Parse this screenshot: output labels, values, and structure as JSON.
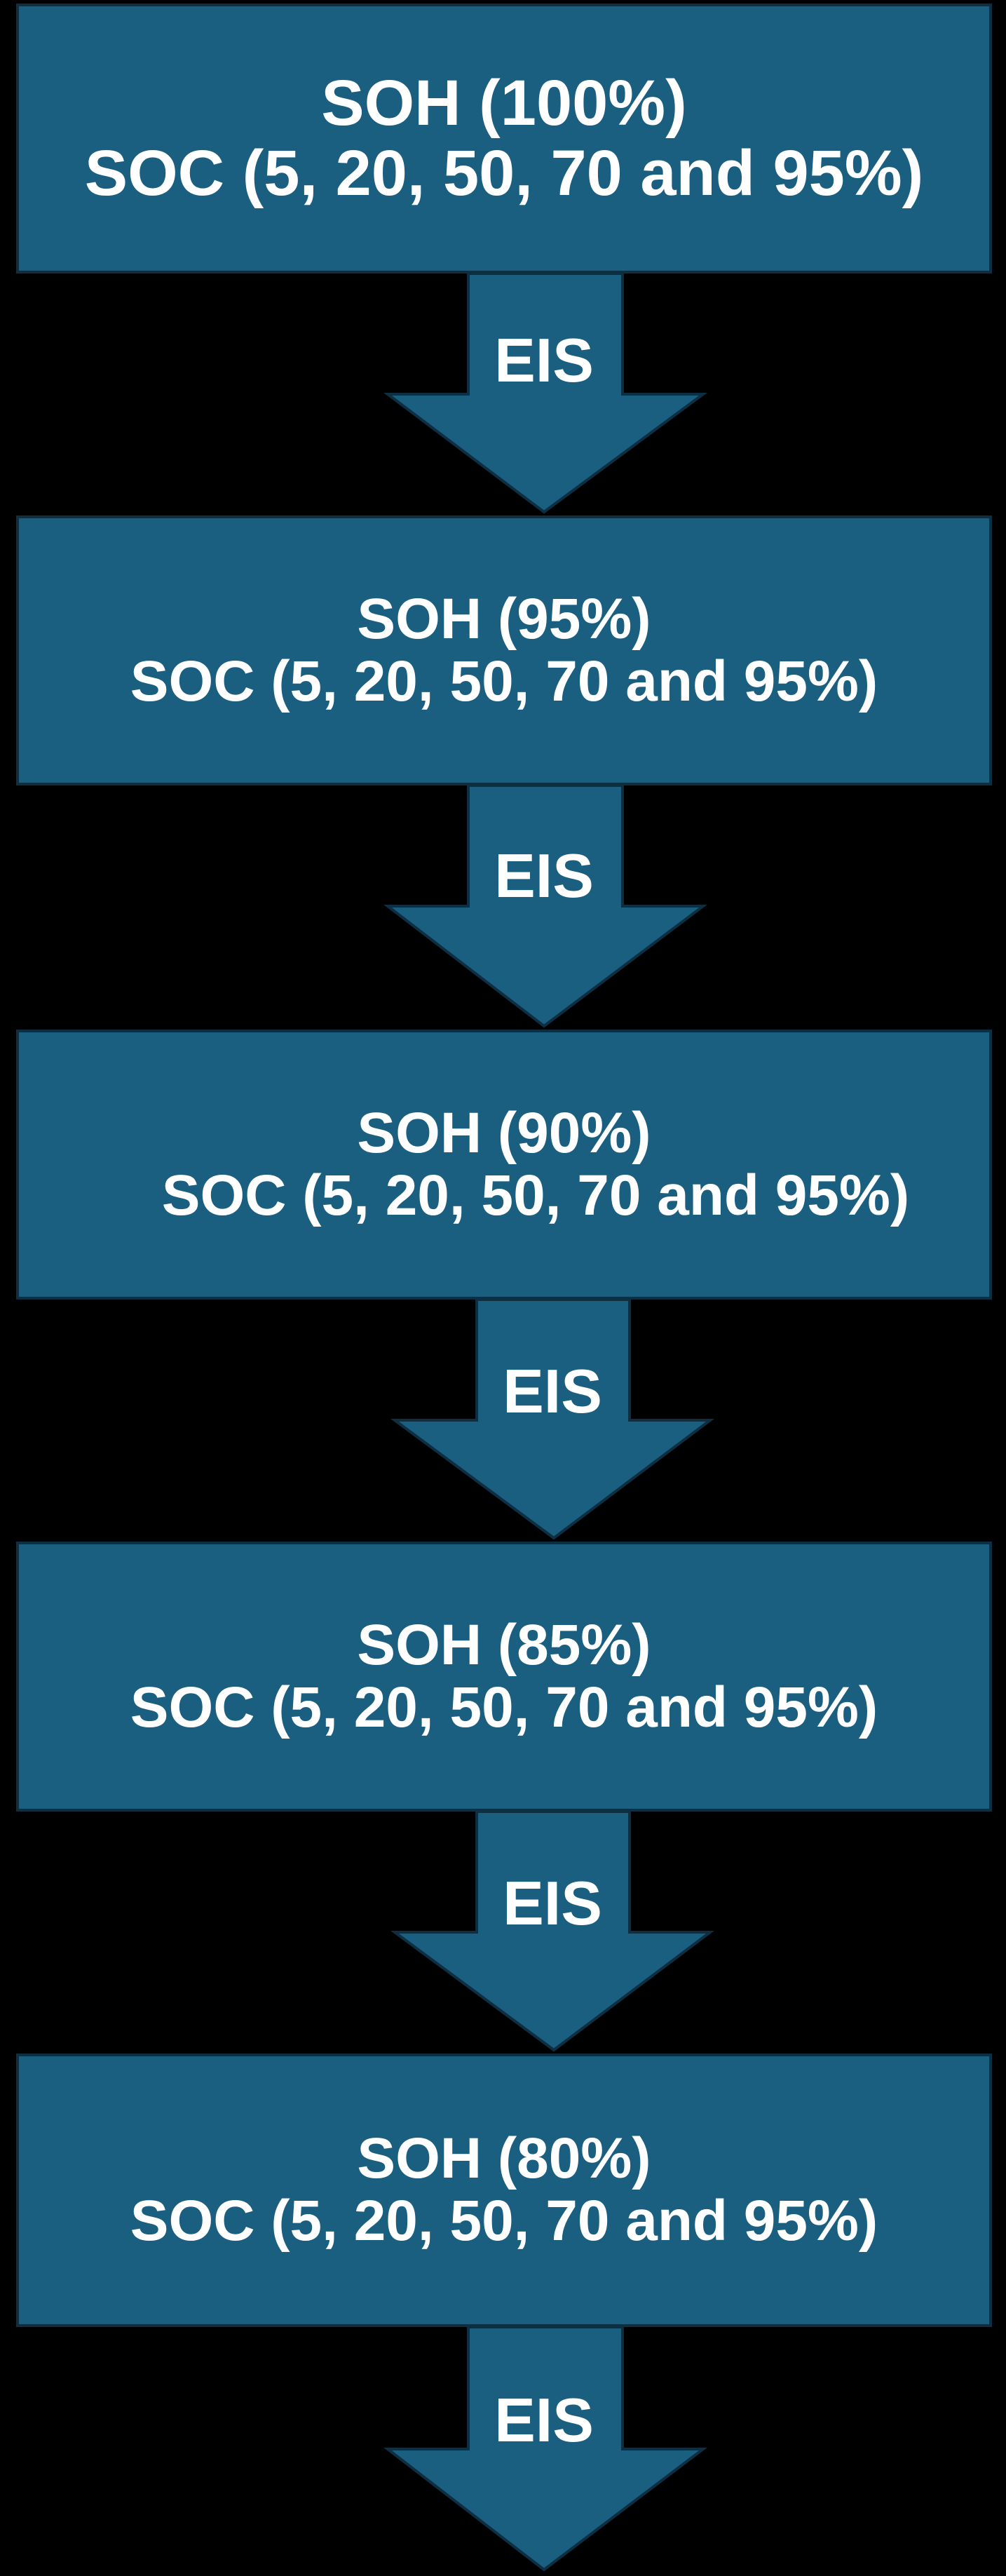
{
  "colors": {
    "background": "#000000",
    "box_fill": "#1a5e80",
    "box_border": "#0e2f42",
    "text": "#ffffff"
  },
  "stages": [
    {
      "soh": "SOH (100%)",
      "soc": "SOC (5, 20, 50, 70 and 95%)"
    },
    {
      "soh": "SOH (95%)",
      "soc": "SOC (5, 20, 50, 70 and 95%)"
    },
    {
      "soh": "SOH (90%)",
      "soc": "SOC (5, 20, 50, 70 and 95%)"
    },
    {
      "soh": "SOH (85%)",
      "soc": "SOC (5, 20, 50, 70 and 95%)"
    },
    {
      "soh": "SOH (80%)",
      "soc": "SOC (5, 20, 50, 70 and 95%)"
    }
  ],
  "arrows": [
    {
      "label": "EIS"
    },
    {
      "label": "EIS"
    },
    {
      "label": "EIS"
    },
    {
      "label": "EIS"
    },
    {
      "label": "EIS"
    }
  ]
}
